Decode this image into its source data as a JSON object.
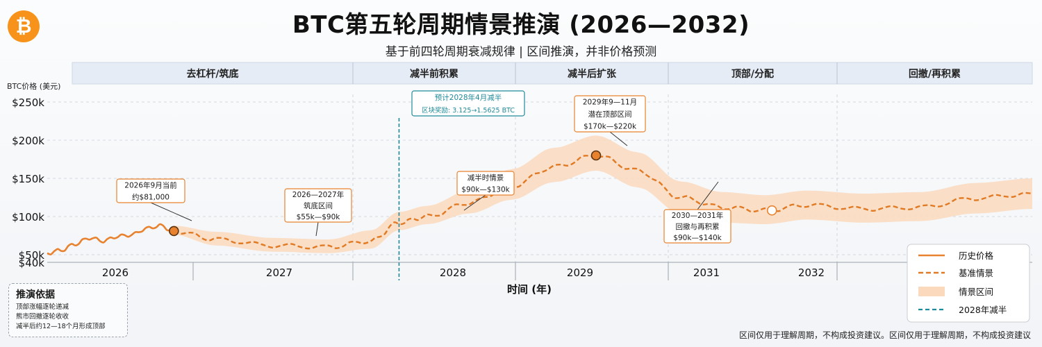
{
  "header": {
    "title": "BTC第五轮周期情景推演 (2026—2032)",
    "subtitle": "基于前四轮周期衰减规律 | 区间推演，并非价格预测"
  },
  "note": {
    "title": "推演依据",
    "lines": [
      "顶部涨幅逐轮递减",
      "熊市回撤逐轮收收",
      "减半后约12—18个月形成顶部"
    ]
  },
  "disclaimer": "区间仅用于理解周期，不构成投资建议。区间仅用于理解周期，不构成投资建议",
  "chart_data": {
    "type": "line",
    "title": "BTC第五轮周期情景推演 (2026—2032)",
    "ylabel": "BTC价格 (美元)",
    "xlabel": "时间 (年)",
    "x_ticks": [
      "2026",
      "2027",
      "2028",
      "2029",
      "2031",
      "2032"
    ],
    "y_ticks": [
      "$40k",
      "$50k",
      "$100k",
      "$150k",
      "$200k",
      "$250k"
    ],
    "y_tick_values": [
      40,
      50,
      100,
      150,
      200,
      250
    ],
    "ylim": [
      40,
      260
    ],
    "xlim": [
      2025.6,
      2032.6
    ],
    "phases": [
      "去杠杆/筑底",
      "减半前积累",
      "减半后扩张",
      "顶部/分配",
      "回撤/再积累"
    ],
    "phase_bounds": [
      2025.6,
      2026.5,
      2027.8,
      2028.3,
      2029.8,
      2030.8,
      2032.6
    ],
    "series": [
      {
        "name": "历史价格",
        "color": "#e8822e",
        "x": [
          2025.6,
          2025.7,
          2025.8,
          2025.9,
          2026.0,
          2026.1,
          2026.2,
          2026.3,
          2026.4,
          2026.5
        ],
        "y": [
          52,
          56,
          64,
          72,
          68,
          74,
          76,
          84,
          88,
          81
        ]
      },
      {
        "name": "基准情景",
        "color": "#e07a24",
        "x": [
          2026.5,
          2026.8,
          2027.2,
          2027.6,
          2027.9,
          2028.1,
          2028.3,
          2028.6,
          2028.9,
          2029.2,
          2029.5,
          2029.8,
          2030.1,
          2030.4,
          2030.7,
          2031.0,
          2031.4,
          2031.8,
          2032.2,
          2032.6
        ],
        "y": [
          81,
          70,
          62,
          60,
          68,
          92,
          100,
          118,
          140,
          165,
          180,
          160,
          125,
          112,
          108,
          115,
          110,
          112,
          124,
          130
        ]
      }
    ],
    "band": {
      "name": "情景区间",
      "x": [
        2026.5,
        2026.8,
        2027.2,
        2027.6,
        2027.9,
        2028.1,
        2028.3,
        2028.6,
        2028.9,
        2029.2,
        2029.5,
        2029.8,
        2030.1,
        2030.4,
        2030.7,
        2031.0,
        2031.4,
        2031.8,
        2032.2,
        2032.6
      ],
      "low": [
        76,
        62,
        54,
        52,
        58,
        82,
        90,
        104,
        122,
        145,
        160,
        138,
        104,
        92,
        90,
        96,
        92,
        94,
        104,
        110
      ],
      "high": [
        88,
        80,
        72,
        70,
        82,
        106,
        114,
        134,
        162,
        190,
        206,
        184,
        146,
        132,
        128,
        134,
        130,
        132,
        144,
        150
      ]
    },
    "halving": {
      "name": "2028年减半",
      "x": 2028.1
    },
    "markers": [
      {
        "x": 2026.5,
        "y": 81,
        "style": "filled"
      },
      {
        "x": 2029.5,
        "y": 180,
        "style": "filled"
      },
      {
        "x": 2030.75,
        "y": 108,
        "style": "hollow"
      }
    ],
    "annotations": [
      {
        "lines": [
          "2026年9月当前",
          "约$81,000"
        ]
      },
      {
        "lines": [
          "2026—2027年",
          "筑底区间",
          "$55k—$90k"
        ]
      },
      {
        "lines": [
          "预计2028年4月减半",
          "区块奖励: 3.125→1.5625 BTC"
        ]
      },
      {
        "lines": [
          "减半时情景",
          "$90k—$130k"
        ]
      },
      {
        "lines": [
          "2029年9—11月",
          "潜在顶部区间",
          "$170k—$220k"
        ]
      },
      {
        "lines": [
          "2030—2031年",
          "回撤与再积累",
          "$90k—$140k"
        ]
      }
    ],
    "legend": {
      "position": "bottom-right",
      "entries": [
        "历史价格",
        "基准情景",
        "情景区间",
        "2028年减半"
      ]
    },
    "colors": {
      "history": "#e8822e",
      "baseline": "#e07a24",
      "band": "#fbd9bd",
      "halving": "#1f8a99",
      "phase_bar": "#e6ecf5",
      "grid": "#c9ced6"
    }
  }
}
